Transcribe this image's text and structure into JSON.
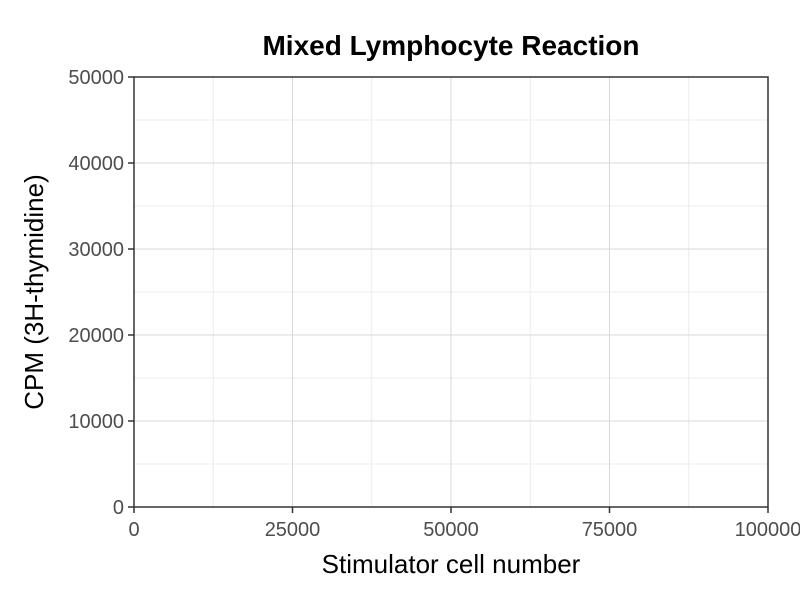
{
  "chart_data": {
    "type": "scatter",
    "title": "Mixed Lymphocyte Reaction",
    "xlabel": "Stimulator cell number",
    "ylabel": "CPM (3H-thymidine)",
    "xlim": [
      0,
      100000
    ],
    "ylim": [
      0,
      50000
    ],
    "x_ticks": [
      0,
      25000,
      50000,
      75000,
      100000
    ],
    "y_ticks": [
      0,
      10000,
      20000,
      30000,
      40000,
      50000
    ],
    "x_tick_labels": [
      "0",
      "25000",
      "50000",
      "75000",
      "100000"
    ],
    "y_tick_labels": [
      "0",
      "10000",
      "20000",
      "30000",
      "40000",
      "50000"
    ],
    "grid": true,
    "series": []
  },
  "colors": {
    "panel_border": "#333333",
    "grid_major": "#d9d9d9",
    "grid_minor": "#ececec",
    "tick_label": "#4d4d4d",
    "text": "#000000"
  }
}
